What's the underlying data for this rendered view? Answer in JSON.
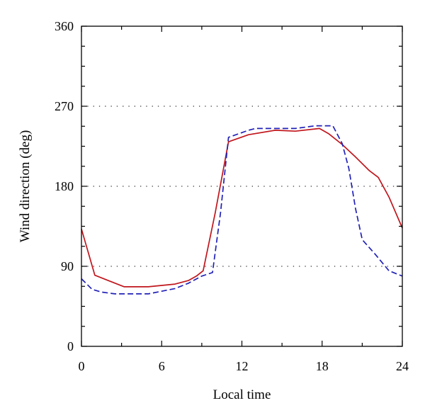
{
  "chart_data": {
    "type": "line",
    "xlabel": "Local time",
    "ylabel": "Wind direction (deg)",
    "xlim": [
      0,
      24
    ],
    "ylim": [
      0,
      360
    ],
    "x_ticks": [
      0,
      6,
      12,
      18,
      24
    ],
    "y_ticks": [
      0,
      90,
      180,
      270,
      360
    ],
    "grid": "horizontal dotted at 90, 180, 270",
    "series": [
      {
        "color": "#c0161c",
        "style": "solid",
        "points": [
          [
            0,
            132
          ],
          [
            1,
            80
          ],
          [
            2,
            74
          ],
          [
            3.2,
            67
          ],
          [
            5,
            67
          ],
          [
            7,
            70
          ],
          [
            8,
            74
          ],
          [
            8.6,
            79
          ],
          [
            9.1,
            85
          ],
          [
            10,
            150
          ],
          [
            11,
            230
          ],
          [
            12.5,
            238
          ],
          [
            14.5,
            243
          ],
          [
            16,
            242
          ],
          [
            17.8,
            245
          ],
          [
            18.5,
            239
          ],
          [
            19.5,
            227
          ],
          [
            20.5,
            213
          ],
          [
            21.5,
            198
          ],
          [
            22.2,
            190
          ],
          [
            23,
            168
          ],
          [
            24,
            133
          ]
        ]
      },
      {
        "color": "#2121b8",
        "style": "dashed",
        "points": [
          [
            0,
            76
          ],
          [
            0.8,
            64
          ],
          [
            1.5,
            61
          ],
          [
            2.5,
            59
          ],
          [
            3.5,
            59
          ],
          [
            5,
            59
          ],
          [
            6,
            62
          ],
          [
            7,
            65
          ],
          [
            8,
            71
          ],
          [
            9,
            79
          ],
          [
            9.8,
            83
          ],
          [
            10.4,
            150
          ],
          [
            11,
            235
          ],
          [
            12.5,
            243
          ],
          [
            13,
            245
          ],
          [
            16,
            245
          ],
          [
            17.5,
            248
          ],
          [
            18.8,
            248
          ],
          [
            19.5,
            228
          ],
          [
            20,
            200
          ],
          [
            20.5,
            155
          ],
          [
            21,
            120
          ],
          [
            22,
            103
          ],
          [
            23,
            85
          ],
          [
            24,
            79
          ]
        ]
      }
    ]
  }
}
